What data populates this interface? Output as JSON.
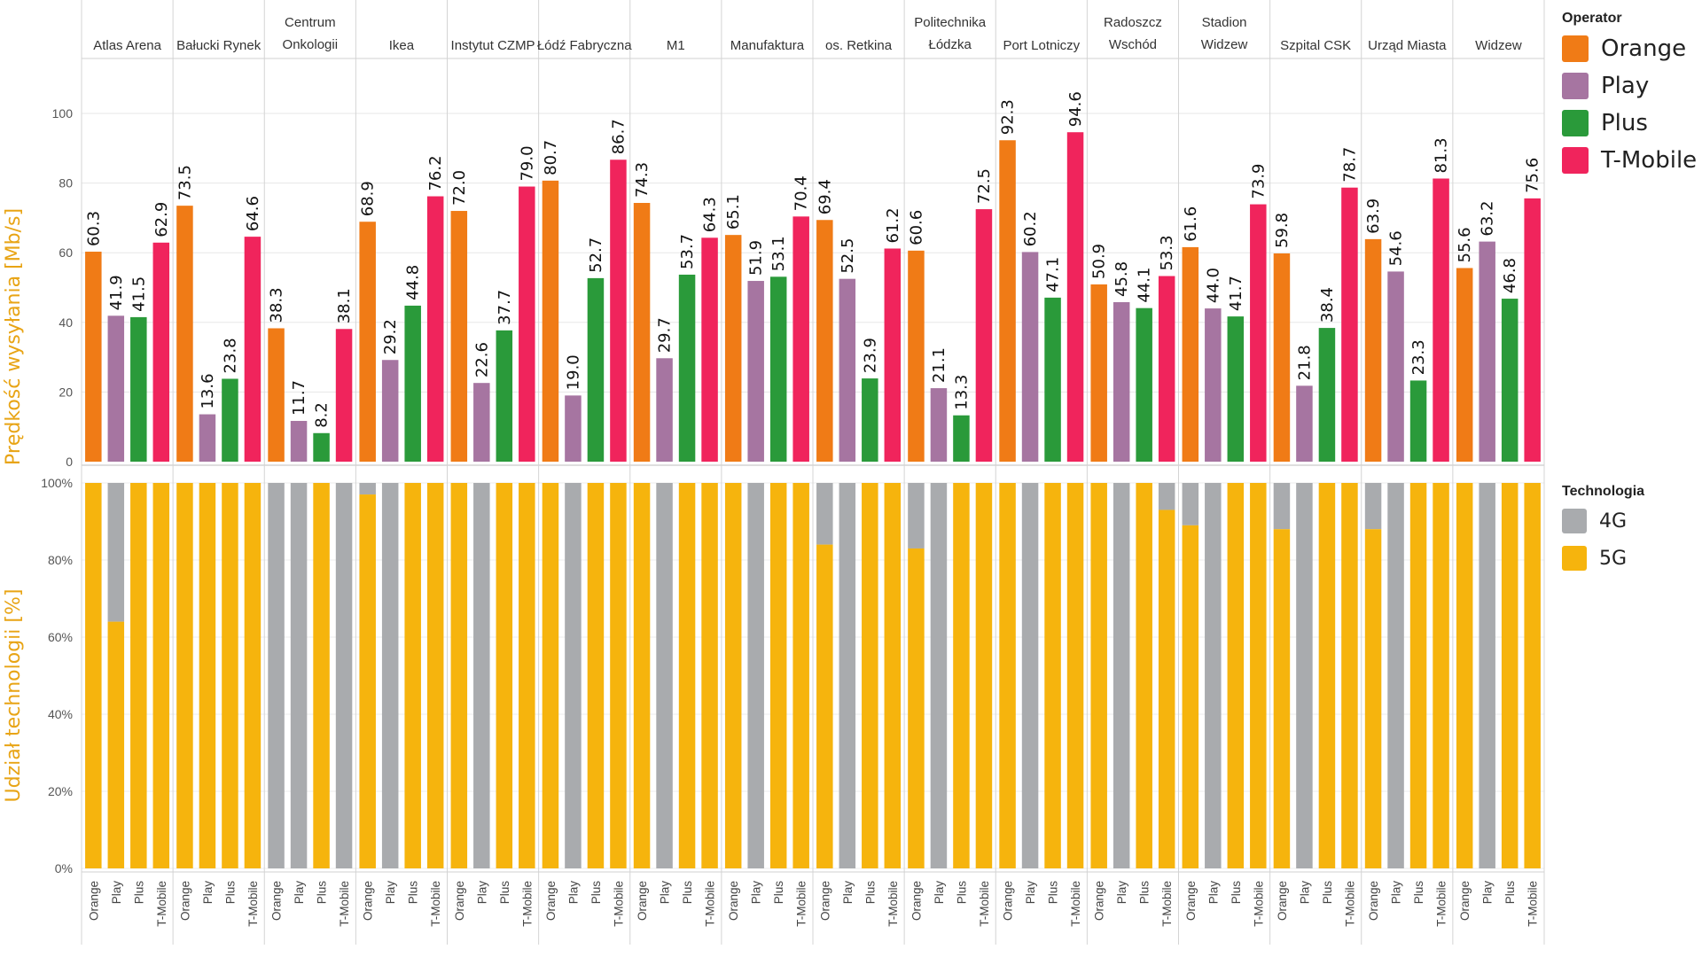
{
  "chart_data": [
    {
      "type": "bar",
      "ylabel": "Prędkość wysyłania [Mb/s]",
      "ylim": [
        0,
        115
      ],
      "yticks": [
        "0",
        "20",
        "40",
        "60",
        "80",
        "100"
      ],
      "operators": [
        "Orange",
        "Play",
        "Plus",
        "T-Mobile"
      ],
      "categories": [
        "Atlas Arena",
        "Bałucki Rynek",
        "Centrum Onkologii",
        "Ikea",
        "Instytut CZMP",
        "Łódź Fabryczna",
        "M1",
        "Manufaktura",
        "os. Retkina",
        "Politechnika Łódzka",
        "Port Lotniczy",
        "Radoszcz Wschód",
        "Stadion Widzew",
        "Szpital CSK",
        "Urząd Miasta",
        "Widzew"
      ],
      "series": [
        {
          "name": "Orange",
          "values": [
            60.3,
            73.5,
            38.3,
            68.9,
            72.0,
            80.7,
            74.3,
            65.1,
            69.4,
            60.6,
            92.3,
            50.9,
            61.6,
            59.8,
            63.9,
            55.6
          ]
        },
        {
          "name": "Play",
          "values": [
            41.9,
            13.6,
            11.7,
            29.2,
            22.6,
            19.0,
            29.7,
            51.9,
            52.5,
            21.1,
            60.2,
            45.8,
            44.0,
            21.8,
            54.6,
            63.2
          ]
        },
        {
          "name": "Plus",
          "values": [
            41.5,
            23.8,
            8.2,
            44.8,
            37.7,
            52.7,
            53.7,
            53.1,
            23.9,
            13.3,
            47.1,
            44.1,
            41.7,
            38.4,
            23.3,
            46.8
          ]
        },
        {
          "name": "T-Mobile",
          "values": [
            62.9,
            64.6,
            38.1,
            76.2,
            79.0,
            86.7,
            64.3,
            70.4,
            61.2,
            72.5,
            94.6,
            53.3,
            73.9,
            78.7,
            81.3,
            75.6
          ]
        }
      ],
      "legend_position": "right"
    },
    {
      "type": "bar",
      "stacked": true,
      "ylabel": "Udział technologii [%]",
      "ylim": [
        0,
        100
      ],
      "yticks": [
        "0%",
        "20%",
        "40%",
        "60%",
        "80%",
        "100%"
      ],
      "categories": [
        "Atlas Arena",
        "Bałucki Rynek",
        "Centrum Onkologii",
        "Ikea",
        "Instytut CZMP",
        "Łódź Fabryczna",
        "M1",
        "Manufaktura",
        "os. Retkina",
        "Politechnika Łódzka",
        "Port Lotniczy",
        "Radoszcz Wschód",
        "Stadion Widzew",
        "Szpital CSK",
        "Urząd Miasta",
        "Widzew"
      ],
      "operators": [
        "Orange",
        "Play",
        "Plus",
        "T-Mobile"
      ],
      "series": [
        {
          "name": "5G",
          "operator_values": [
            [
              100,
              64,
              100,
              100
            ],
            [
              100,
              100,
              100,
              100
            ],
            [
              0,
              0,
              100,
              0
            ],
            [
              97,
              0,
              100,
              100
            ],
            [
              100,
              0,
              100,
              100
            ],
            [
              100,
              0,
              100,
              100
            ],
            [
              100,
              0,
              100,
              100
            ],
            [
              100,
              0,
              100,
              100
            ],
            [
              84,
              0,
              100,
              100
            ],
            [
              83,
              0,
              100,
              100
            ],
            [
              100,
              0,
              100,
              100
            ],
            [
              100,
              0,
              100,
              93
            ],
            [
              89,
              0,
              100,
              100
            ],
            [
              88,
              0,
              100,
              100
            ],
            [
              88,
              0,
              100,
              100
            ],
            [
              100,
              0,
              100,
              100
            ]
          ]
        },
        {
          "name": "4G",
          "note": "remainder to 100%"
        }
      ],
      "legend_position": "right"
    }
  ],
  "legend_operator": {
    "title": "Operator",
    "items": [
      {
        "label": "Orange",
        "color": "#F07B16"
      },
      {
        "label": "Play",
        "color": "#A675A1"
      },
      {
        "label": "Plus",
        "color": "#2A9A3A"
      },
      {
        "label": "T-Mobile",
        "color": "#F0245C"
      }
    ]
  },
  "legend_tech": {
    "title": "Technologia",
    "items": [
      {
        "label": "4G",
        "color": "#A9ABAE"
      },
      {
        "label": "5G",
        "color": "#F6B40D"
      }
    ]
  },
  "category_lines": [
    [
      "Atlas Arena"
    ],
    [
      "Bałucki Rynek"
    ],
    [
      "Centrum",
      "Onkologii"
    ],
    [
      "Ikea"
    ],
    [
      "Instytut CZMP"
    ],
    [
      "Łódź Fabryczna"
    ],
    [
      "M1"
    ],
    [
      "Manufaktura"
    ],
    [
      "os. Retkina"
    ],
    [
      "Politechnika",
      "Łódzka"
    ],
    [
      "Port Lotniczy"
    ],
    [
      "Radoszcz",
      "Wschód"
    ],
    [
      "Stadion",
      "Widzew"
    ],
    [
      "Szpital CSK"
    ],
    [
      "Urząd Miasta"
    ],
    [
      "Widzew"
    ]
  ]
}
